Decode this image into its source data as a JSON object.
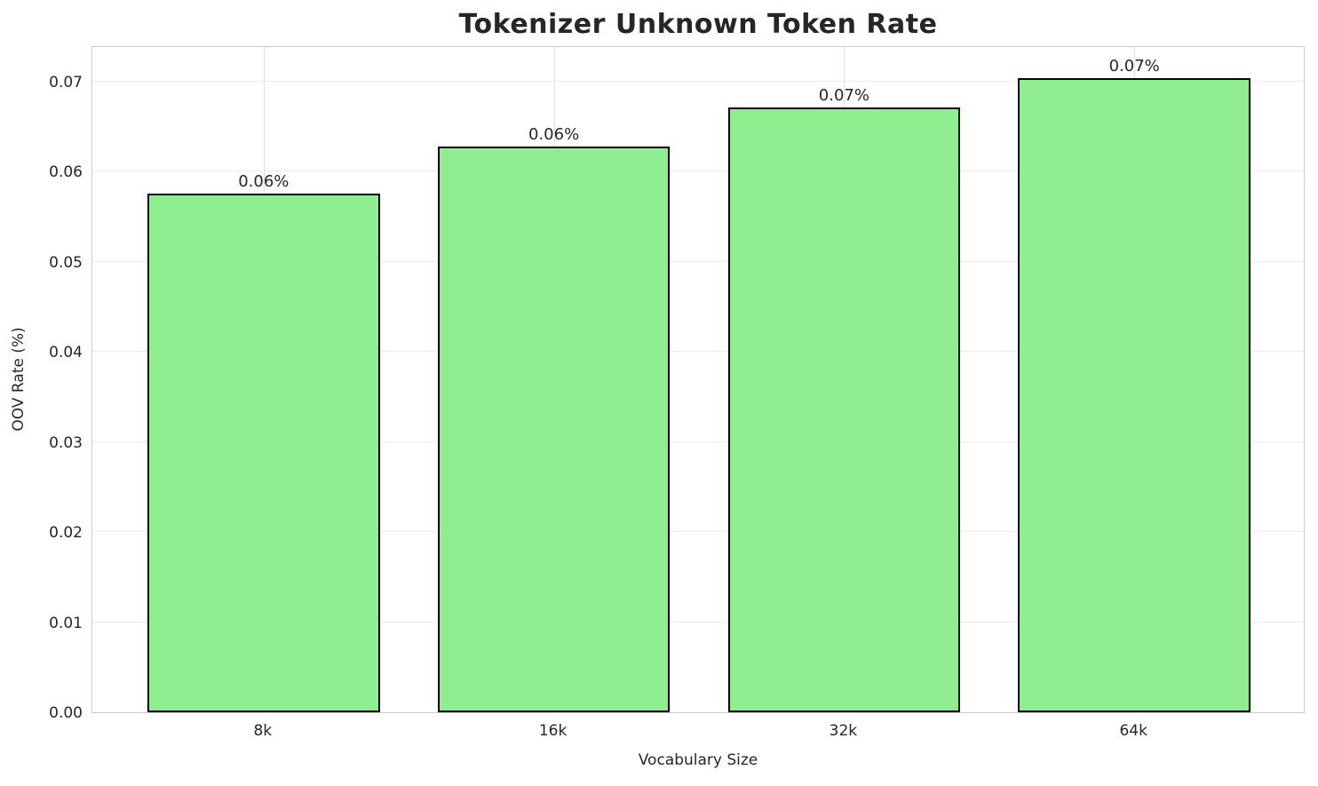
{
  "chart_data": {
    "type": "bar",
    "title": "Tokenizer Unknown Token Rate",
    "xlabel": "Vocabulary Size",
    "ylabel": "OOV Rate (%)",
    "categories": [
      "8k",
      "16k",
      "32k",
      "64k"
    ],
    "values": [
      0.0575,
      0.0628,
      0.0671,
      0.0704
    ],
    "bar_labels": [
      "0.06%",
      "0.06%",
      "0.07%",
      "0.07%"
    ],
    "yticks": [
      "0.00",
      "0.01",
      "0.02",
      "0.03",
      "0.04",
      "0.05",
      "0.06",
      "0.07"
    ],
    "ylim": [
      0,
      0.074
    ],
    "grid": true,
    "legend_position": "none",
    "colors": {
      "bar_fill": "#90EE90",
      "bar_edge": "#000000",
      "grid_horizontal": "#ececec",
      "grid_vertical": "#e0e0e0",
      "spine": "#cccccc",
      "text": "#262626"
    }
  }
}
